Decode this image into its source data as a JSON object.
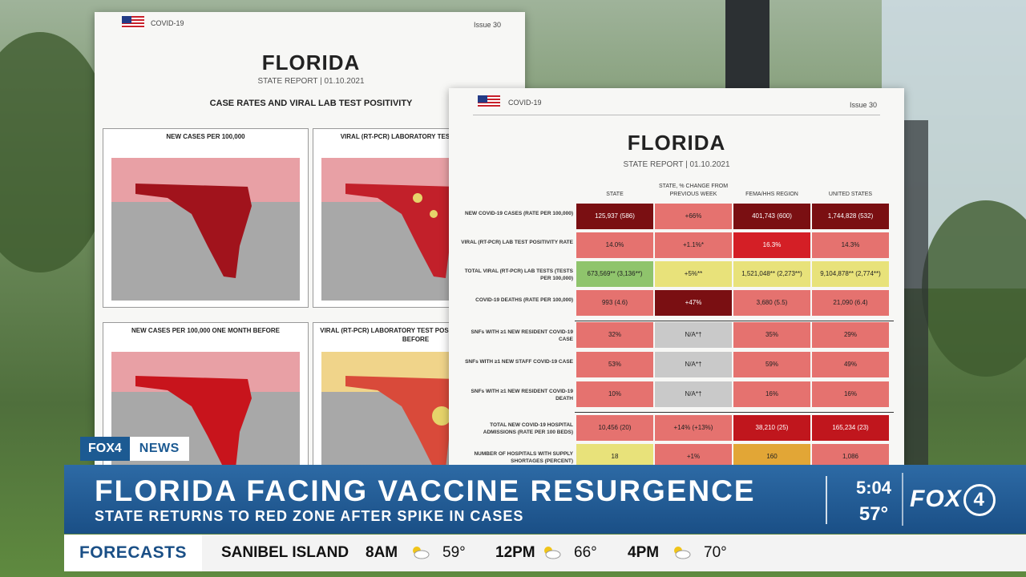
{
  "report_back": {
    "header_left": "COVID-19",
    "header_right": "Issue 30",
    "title": "FLORIDA",
    "subtitle": "STATE REPORT | 01.10.2021",
    "section": "CASE RATES AND VIRAL LAB TEST POSITIVITY",
    "maps": [
      {
        "caption": "NEW CASES PER 100,000"
      },
      {
        "caption": "VIRAL (RT-PCR) LABORATORY TEST POSITIVITY"
      },
      {
        "caption": "NEW CASES PER 100,000 ONE MONTH BEFORE"
      },
      {
        "caption": "VIRAL (RT-PCR) LABORATORY TEST POSITIVITY ONE MONTH BEFORE"
      }
    ]
  },
  "report_front": {
    "header_left": "COVID-19",
    "header_right": "Issue 30",
    "title": "FLORIDA",
    "subtitle": "STATE REPORT | 01.10.2021",
    "columns": [
      "STATE",
      "STATE, % CHANGE FROM PREVIOUS WEEK",
      "FEMA/HHS REGION",
      "UNITED STATES"
    ],
    "rows": [
      {
        "label": "NEW COVID-19 CASES (RATE PER 100,000)",
        "cells": [
          "125,937 (586)",
          "+66%",
          "401,743 (600)",
          "1,744,828 (532)"
        ]
      },
      {
        "label": "VIRAL (RT-PCR) LAB TEST POSITIVITY RATE",
        "cells": [
          "14.0%",
          "+1.1%*",
          "16.3%",
          "14.3%"
        ]
      },
      {
        "label": "TOTAL VIRAL (RT-PCR) LAB TESTS (TESTS PER 100,000)",
        "cells": [
          "673,569** (3,136**)",
          "+5%**",
          "1,521,048** (2,273**)",
          "9,104,878** (2,774**)"
        ]
      },
      {
        "label": "COVID-19 DEATHS (RATE PER 100,000)",
        "cells": [
          "993 (4.6)",
          "+47%",
          "3,680 (5.5)",
          "21,090 (6.4)"
        ]
      },
      {
        "label": "SNFs WITH ≥1 NEW RESIDENT COVID-19 CASE",
        "cells": [
          "32%",
          "N/A*†",
          "35%",
          "29%"
        ]
      },
      {
        "label": "SNFs WITH ≥1 NEW STAFF COVID-19 CASE",
        "cells": [
          "53%",
          "N/A*†",
          "59%",
          "49%"
        ]
      },
      {
        "label": "SNFs WITH ≥1 NEW RESIDENT COVID-19 DEATH",
        "cells": [
          "10%",
          "N/A*†",
          "16%",
          "16%"
        ]
      },
      {
        "label": "TOTAL NEW COVID-19 HOSPITAL ADMISSIONS (RATE PER 100 BEDS)",
        "cells": [
          "10,456 (20)",
          "+14% (+13%)",
          "38,210 (25)",
          "165,234 (23)"
        ]
      },
      {
        "label": "NUMBER OF HOSPITALS WITH SUPPLY SHORTAGES (PERCENT)",
        "cells": [
          "18",
          "+1%",
          "160",
          "1,086"
        ]
      }
    ],
    "cell_colors": [
      [
        "#7a0f12",
        "#e5726f",
        "#7a0f12",
        "#7a0f12"
      ],
      [
        "#e5726f",
        "#e5726f",
        "#d41f26",
        "#e5726f"
      ],
      [
        "#8fc46c",
        "#e8e27a",
        "#e8e27a",
        "#e8e27a"
      ],
      [
        "#e5726f",
        "#7a0f12",
        "#e5726f",
        "#e5726f"
      ],
      [
        "#e5726f",
        "#c9c9c9",
        "#e5726f",
        "#e5726f"
      ],
      [
        "#e5726f",
        "#c9c9c9",
        "#e5726f",
        "#e5726f"
      ],
      [
        "#e5726f",
        "#c9c9c9",
        "#e5726f",
        "#e5726f"
      ],
      [
        "#e5726f",
        "#e5726f",
        "#c0161d",
        "#c0161d"
      ],
      [
        "#e8e27a",
        "#e5726f",
        "#e2a636",
        "#e5726f"
      ]
    ]
  },
  "bug": {
    "brand": "FOX4",
    "label": "NEWS"
  },
  "lower_third": {
    "headline": "FLORIDA FACING VACCINE RESURGENCE",
    "subheadline": "STATE RETURNS TO RED ZONE AFTER SPIKE IN CASES",
    "time": "5:04",
    "temperature": "57°",
    "logo_text": "FOX",
    "logo_number": "4"
  },
  "ticker": {
    "tag": "FORECASTS",
    "location": "SANIBEL ISLAND",
    "slots": [
      {
        "time": "8AM",
        "icon": "partly-cloudy-icon",
        "temp": "59°"
      },
      {
        "time": "12PM",
        "icon": "partly-cloudy-icon",
        "temp": "66°"
      },
      {
        "time": "4PM",
        "icon": "partly-cloudy-icon",
        "temp": "70°"
      }
    ]
  },
  "colors": {
    "brand_blue": "#1a4f86",
    "accent_red": "#c0161d"
  }
}
